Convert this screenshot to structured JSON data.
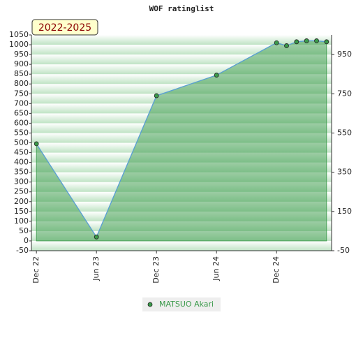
{
  "chart_data": {
    "type": "line",
    "title": "WOF ratinglist",
    "badge": "2022-2025",
    "x": [
      0,
      6,
      12,
      18,
      24,
      25,
      26,
      27,
      28,
      29
    ],
    "xlim": [
      -0.5,
      29.5
    ],
    "xticks": [
      {
        "value": 0,
        "label": "Dec 22"
      },
      {
        "value": 6,
        "label": "Jun 23"
      },
      {
        "value": 12,
        "label": "Dec 23"
      },
      {
        "value": 18,
        "label": "Jun 24"
      },
      {
        "value": 24,
        "label": "Dec 24"
      }
    ],
    "ylim": [
      -50,
      1050
    ],
    "yticks": [
      -50,
      0,
      50,
      100,
      150,
      200,
      250,
      300,
      350,
      400,
      450,
      500,
      550,
      600,
      650,
      700,
      750,
      800,
      850,
      900,
      950,
      1000,
      1050
    ],
    "y2lim": [
      -50,
      1050
    ],
    "y2ticks": [
      -50,
      150,
      350,
      550,
      750,
      950
    ],
    "series": [
      {
        "name": "MATSUO Akari",
        "color": "#3a9a4a",
        "line_color": "#5a9fd4",
        "values": [
          495,
          20,
          740,
          845,
          1010,
          995,
          1015,
          1020,
          1020,
          1015
        ]
      }
    ]
  }
}
